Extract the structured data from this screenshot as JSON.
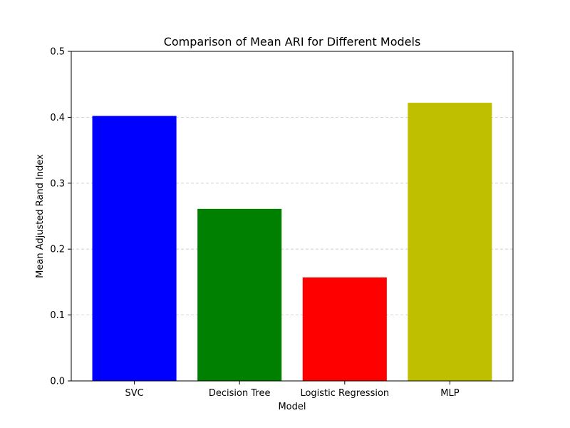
{
  "chart_data": {
    "type": "bar",
    "title": "Comparison of Mean ARI for Different Models",
    "xlabel": "Model",
    "ylabel": "Mean Adjusted Rand Index",
    "categories": [
      "SVC",
      "Decision Tree",
      "Logistic Regression",
      "MLP"
    ],
    "values": [
      0.402,
      0.261,
      0.157,
      0.422
    ],
    "colors": [
      "#0000ff",
      "#008000",
      "#ff0000",
      "#bfbf00"
    ],
    "ylim": [
      0,
      0.5
    ],
    "yticks": [
      "0.0",
      "0.1",
      "0.2",
      "0.3",
      "0.4",
      "0.5"
    ],
    "grid": "y-dashed",
    "legend": "none"
  }
}
